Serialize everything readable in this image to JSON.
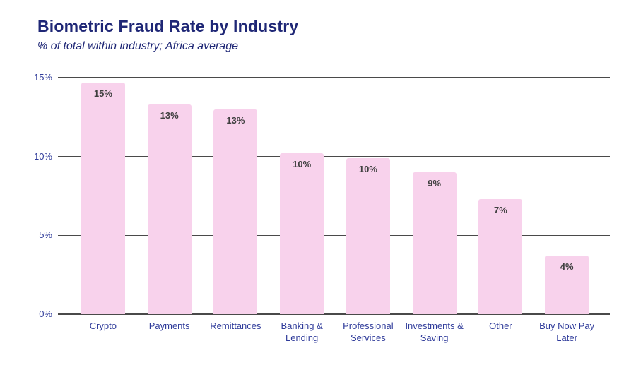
{
  "chart_data": {
    "type": "bar",
    "title": "Biometric Fraud Rate by Industry",
    "subtitle": "% of total within industry; Africa average",
    "categories": [
      "Crypto",
      "Payments",
      "Remittances",
      "Banking &\nLending",
      "Professional\nServices",
      "Investments &\nSaving",
      "Other",
      "Buy Now Pay\nLater"
    ],
    "values": [
      14.7,
      13.3,
      13.0,
      10.2,
      9.9,
      9.0,
      7.3,
      3.7
    ],
    "bar_labels": [
      "15%",
      "13%",
      "13%",
      "10%",
      "10%",
      "9%",
      "7%",
      "4%"
    ],
    "xlabel": "",
    "ylabel": "",
    "ylim": [
      0,
      15
    ],
    "yticks": [
      {
        "value": 0,
        "label": "0%"
      },
      {
        "value": 5,
        "label": "5%"
      },
      {
        "value": 10,
        "label": "10%"
      },
      {
        "value": 15,
        "label": "15%"
      }
    ],
    "grid": "horizontal",
    "legend": "none",
    "colors": {
      "background": "#FFFFFF",
      "bar_fill": "#F8D2EC",
      "grid_line": "#4A4A4A",
      "title_text": "#1F2776",
      "axis_label_text": "#2F3B9A",
      "bar_label_text": "#3F3F3F"
    }
  }
}
